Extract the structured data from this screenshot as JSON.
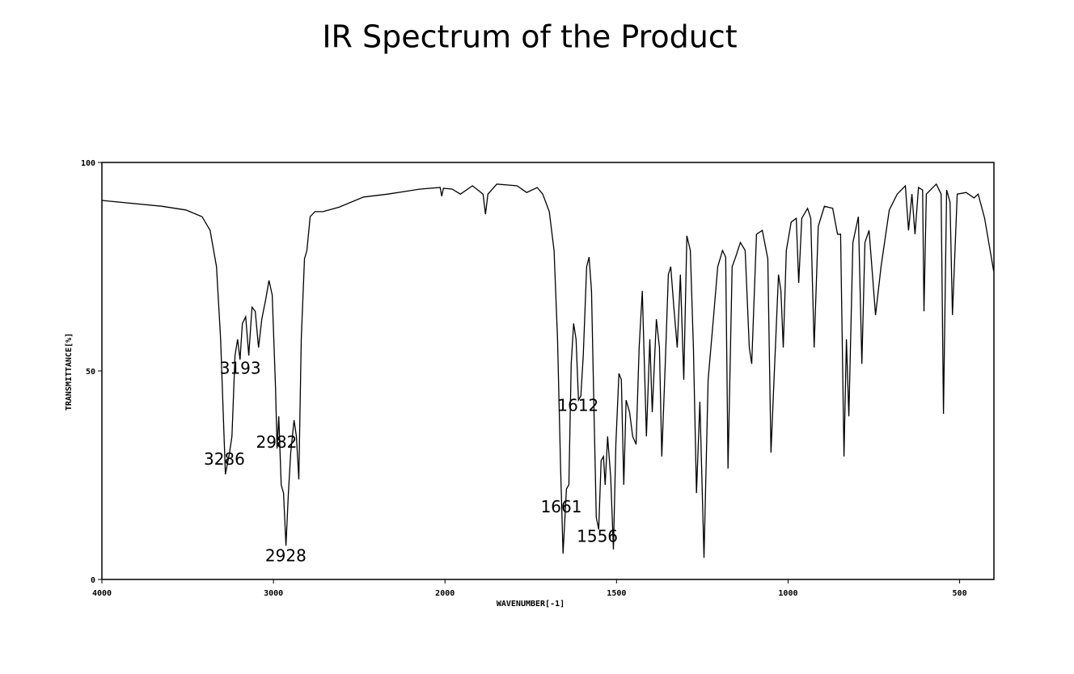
{
  "chart_data": {
    "type": "line",
    "title": "IR Spectrum of the Product",
    "xlabel": "WAVENUMBER[-1]",
    "ylabel": "TRANSMITTANCE[%]",
    "xlim": [
      4000,
      400
    ],
    "x_scale_break": 2000,
    "xticks": [
      4000,
      3000,
      2000,
      1500,
      1000,
      500
    ],
    "ylim": [
      0,
      100
    ],
    "yticks": [
      0,
      50,
      100
    ],
    "grid": false,
    "color": "#000000",
    "annotations": [
      3286,
      3193,
      2982,
      2928,
      1661,
      1612,
      1556
    ],
    "x": [
      4000,
      3652,
      3511,
      3416,
      3369,
      3332,
      3308,
      3280,
      3256,
      3242,
      3224,
      3209,
      3195,
      3181,
      3162,
      3144,
      3125,
      3106,
      3087,
      3068,
      3045,
      3026,
      3007,
      2988,
      2979,
      2969,
      2955,
      2941,
      2927,
      2913,
      2899,
      2880,
      2866,
      2852,
      2838,
      2819,
      2805,
      2786,
      2758,
      2711,
      2616,
      2475,
      2334,
      2146,
      2028,
      2019,
      2009,
      1979,
      1955,
      1920,
      1889,
      1882,
      1875,
      1849,
      1790,
      1762,
      1731,
      1715,
      1696,
      1682,
      1672,
      1663,
      1656,
      1646,
      1639,
      1632,
      1625,
      1618,
      1611,
      1604,
      1597,
      1587,
      1580,
      1573,
      1566,
      1559,
      1552,
      1545,
      1538,
      1533,
      1526,
      1517,
      1509,
      1502,
      1493,
      1486,
      1479,
      1472,
      1462,
      1453,
      1443,
      1434,
      1425,
      1413,
      1403,
      1396,
      1384,
      1375,
      1368,
      1358,
      1349,
      1342,
      1333,
      1323,
      1314,
      1304,
      1295,
      1285,
      1276,
      1267,
      1257,
      1245,
      1233,
      1219,
      1205,
      1191,
      1182,
      1175,
      1163,
      1153,
      1139,
      1125,
      1113,
      1106,
      1092,
      1075,
      1059,
      1050,
      1040,
      1028,
      1021,
      1014,
      1005,
      991,
      976,
      969,
      960,
      943,
      934,
      924,
      912,
      894,
      870,
      856,
      847,
      837,
      830,
      823,
      811,
      795,
      785,
      776,
      764,
      745,
      729,
      705,
      682,
      658,
      649,
      639,
      630,
      620,
      608,
      604,
      597,
      568,
      554,
      547,
      538,
      528,
      521,
      507,
      481,
      458,
      446,
      427,
      401
    ],
    "values": [
      90.9,
      89.5,
      88.6,
      87.0,
      83.7,
      75.0,
      57.6,
      25.2,
      30.4,
      34.3,
      53.7,
      57.6,
      52.7,
      61.4,
      63.0,
      53.7,
      65.3,
      64.3,
      55.6,
      62.4,
      67.2,
      71.7,
      68.2,
      45.9,
      31.4,
      39.1,
      22.7,
      20.7,
      8.1,
      20.7,
      30.4,
      38.2,
      34.3,
      24.0,
      57.6,
      76.9,
      78.9,
      87.0,
      88.2,
      88.2,
      89.3,
      91.7,
      92.4,
      93.6,
      94.0,
      91.9,
      93.8,
      93.6,
      92.4,
      94.4,
      92.4,
      87.6,
      92.4,
      94.8,
      94.4,
      92.8,
      94.0,
      92.4,
      88.2,
      78.9,
      57.6,
      26.6,
      6.2,
      21.7,
      22.7,
      51.7,
      61.4,
      57.6,
      43.0,
      44.0,
      53.7,
      75.0,
      77.3,
      69.2,
      42.0,
      14.9,
      12.0,
      28.5,
      29.5,
      22.7,
      34.3,
      24.6,
      7.2,
      32.4,
      49.4,
      47.9,
      22.7,
      43.0,
      40.1,
      34.3,
      32.4,
      55.6,
      69.2,
      34.3,
      57.6,
      40.1,
      62.4,
      55.6,
      29.5,
      51.7,
      73.1,
      75.0,
      65.3,
      55.6,
      73.1,
      47.9,
      82.4,
      78.9,
      55.6,
      20.7,
      42.6,
      5.2,
      47.9,
      61.4,
      75.0,
      78.9,
      77.3,
      26.6,
      75.0,
      77.3,
      80.8,
      78.9,
      55.6,
      51.7,
      82.8,
      83.7,
      76.9,
      30.4,
      49.8,
      73.1,
      69.2,
      55.6,
      78.9,
      85.7,
      86.6,
      71.1,
      86.6,
      89.0,
      86.6,
      55.6,
      84.7,
      89.5,
      89.0,
      82.8,
      82.8,
      29.5,
      57.6,
      39.1,
      80.8,
      87.0,
      51.7,
      80.8,
      83.7,
      63.4,
      75.0,
      88.6,
      92.4,
      94.4,
      83.7,
      92.4,
      82.8,
      94.0,
      93.4,
      64.3,
      92.4,
      94.8,
      92.4,
      39.7,
      93.4,
      90.5,
      63.4,
      92.4,
      92.8,
      91.5,
      92.4,
      86.6,
      74.0
    ]
  }
}
